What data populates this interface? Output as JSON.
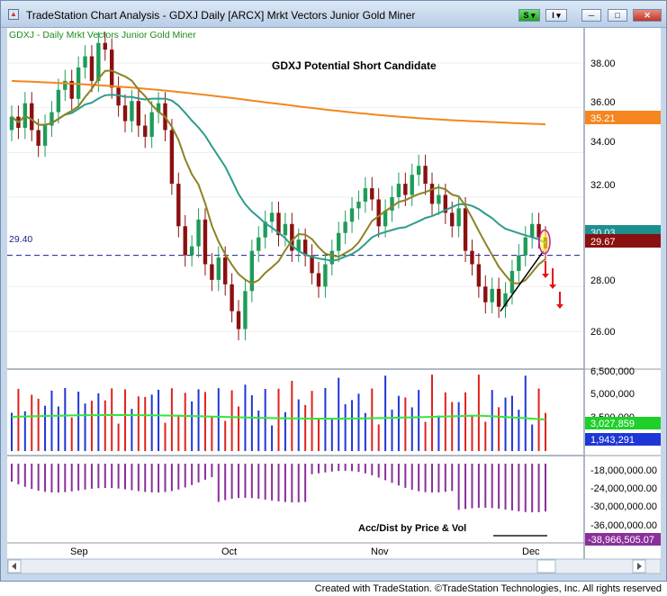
{
  "window": {
    "title": "TradeStation Chart Analysis - GDXJ Daily [ARCX] Mrkt Vectors Junior Gold Miner",
    "s_button": "S",
    "i_button": "I"
  },
  "chart": {
    "symbol_label": "GDXJ - Daily  Mrkt Vectors Junior Gold Miner",
    "annotation": "GDXJ Potential Short Candidate",
    "reference_line_label": "29.40",
    "price_ticks": [
      "38.00",
      "36.00",
      "34.00",
      "32.00",
      "28.00",
      "26.00"
    ],
    "price_tags": [
      "35.21",
      "30.03",
      "29.67"
    ],
    "volume_ticks": [
      "6,500,000",
      "5,000,000",
      "3,500,000"
    ],
    "volume_tags": [
      "3,027,859",
      "1,943,291"
    ],
    "ad_ticks": [
      "-18,000,000.00",
      "-24,000,000.00",
      "-30,000,000.00",
      "-36,000,000.00"
    ],
    "ad_label": "Acc/Dist by Price & Vol",
    "ad_tag": "-38,966,505.07",
    "months": [
      "Sep",
      "Oct",
      "Nov",
      "Dec"
    ],
    "colors": {
      "up": "#1f9c5a",
      "down": "#8b1010",
      "ma_long": "#f5861f",
      "ma_mid": "#2e9c8c",
      "ma_short": "#8c8225",
      "vol_up": "#1f36d6",
      "vol_down": "#e0211d",
      "vol_avg": "#34e53a",
      "ad": "#8b2f9b",
      "ref": "#1c1c8c"
    }
  },
  "chart_data": {
    "type": "candlestick",
    "ma_long_last": 35.21,
    "ma_mid_last": 30.03,
    "ma_short_last": 29.67,
    "volume_avg_last": 3027859,
    "volume_last": 1943291,
    "ad_last": -38966505.07,
    "reference_level": 29.4
  },
  "status": "Created with TradeStation. ©TradeStation Technologies, Inc. All rights reserved"
}
